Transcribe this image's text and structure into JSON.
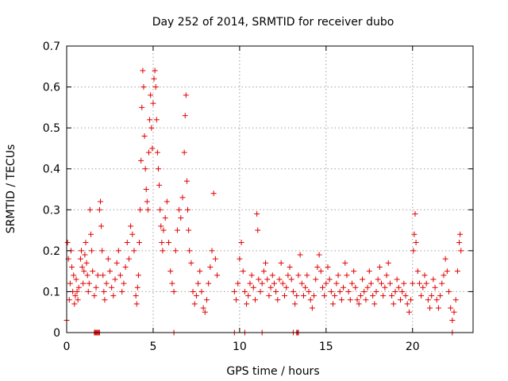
{
  "chart_data": {
    "type": "scatter",
    "title": "Day 252 of 2014, SRMTID for receiver dubo",
    "xlabel": "GPS time / hours",
    "ylabel": "SRMTID / TECUs",
    "xlim": [
      0,
      23.5
    ],
    "ylim": [
      0,
      0.7
    ],
    "x_ticks": [
      0,
      5,
      10,
      15,
      20
    ],
    "x_tick_labels": [
      "0",
      "5",
      "10",
      "15",
      "20"
    ],
    "y_ticks": [
      0,
      0.1,
      0.2,
      0.3,
      0.4,
      0.5,
      0.6,
      0.7
    ],
    "y_tick_labels": [
      "0",
      "0.1",
      "0.2",
      "0.3",
      "0.4",
      "0.5",
      "0.6",
      "0.7"
    ],
    "grid": true,
    "marker": "+",
    "marker_color": "#e00000",
    "series": [
      {
        "name": "SRMTID",
        "points": [
          [
            0.0,
            0.03
          ],
          [
            0.05,
            0.22
          ],
          [
            0.1,
            0.18
          ],
          [
            0.15,
            0.08
          ],
          [
            0.2,
            0.12
          ],
          [
            0.25,
            0.2
          ],
          [
            0.3,
            0.16
          ],
          [
            0.35,
            0.1
          ],
          [
            0.4,
            0.14
          ],
          [
            0.45,
            0.07
          ],
          [
            0.5,
            0.09
          ],
          [
            0.55,
            0.13
          ],
          [
            0.6,
            0.1
          ],
          [
            0.65,
            0.08
          ],
          [
            0.7,
            0.11
          ],
          [
            0.8,
            0.18
          ],
          [
            0.85,
            0.2
          ],
          [
            0.9,
            0.16
          ],
          [
            0.95,
            0.12
          ],
          [
            1.0,
            0.15
          ],
          [
            1.05,
            0.19
          ],
          [
            1.1,
            0.22
          ],
          [
            1.15,
            0.17
          ],
          [
            1.2,
            0.14
          ],
          [
            1.25,
            0.1
          ],
          [
            1.3,
            0.12
          ],
          [
            1.35,
            0.3
          ],
          [
            1.4,
            0.24
          ],
          [
            1.45,
            0.2
          ],
          [
            1.5,
            0.15
          ],
          [
            1.6,
            0.09
          ],
          [
            1.7,
            0.11
          ],
          [
            1.8,
            0.14
          ],
          [
            1.9,
            0.3
          ],
          [
            1.95,
            0.32
          ],
          [
            2.0,
            0.26
          ],
          [
            2.05,
            0.2
          ],
          [
            2.1,
            0.14
          ],
          [
            2.15,
            0.1
          ],
          [
            2.2,
            0.08
          ],
          [
            2.3,
            0.12
          ],
          [
            2.4,
            0.18
          ],
          [
            2.5,
            0.15
          ],
          [
            2.6,
            0.11
          ],
          [
            2.7,
            0.09
          ],
          [
            2.8,
            0.13
          ],
          [
            2.9,
            0.17
          ],
          [
            3.0,
            0.2
          ],
          [
            3.1,
            0.14
          ],
          [
            3.2,
            0.1
          ],
          [
            3.3,
            0.12
          ],
          [
            3.4,
            0.16
          ],
          [
            3.5,
            0.22
          ],
          [
            3.6,
            0.18
          ],
          [
            3.7,
            0.26
          ],
          [
            3.8,
            0.24
          ],
          [
            3.9,
            0.2
          ],
          [
            4.0,
            0.09
          ],
          [
            4.05,
            0.07
          ],
          [
            4.1,
            0.11
          ],
          [
            4.15,
            0.14
          ],
          [
            4.2,
            0.22
          ],
          [
            4.25,
            0.3
          ],
          [
            4.3,
            0.42
          ],
          [
            4.35,
            0.55
          ],
          [
            4.4,
            0.64
          ],
          [
            4.45,
            0.6
          ],
          [
            4.5,
            0.48
          ],
          [
            4.55,
            0.4
          ],
          [
            4.6,
            0.35
          ],
          [
            4.65,
            0.32
          ],
          [
            4.7,
            0.3
          ],
          [
            4.75,
            0.44
          ],
          [
            4.8,
            0.52
          ],
          [
            4.85,
            0.58
          ],
          [
            4.9,
            0.5
          ],
          [
            4.95,
            0.45
          ],
          [
            5.0,
            0.56
          ],
          [
            5.05,
            0.62
          ],
          [
            5.1,
            0.64
          ],
          [
            5.15,
            0.6
          ],
          [
            5.2,
            0.52
          ],
          [
            5.25,
            0.44
          ],
          [
            5.3,
            0.4
          ],
          [
            5.35,
            0.36
          ],
          [
            5.4,
            0.3
          ],
          [
            5.45,
            0.26
          ],
          [
            5.5,
            0.22
          ],
          [
            5.55,
            0.2
          ],
          [
            5.6,
            0.25
          ],
          [
            5.7,
            0.28
          ],
          [
            5.8,
            0.32
          ],
          [
            5.9,
            0.22
          ],
          [
            6.0,
            0.15
          ],
          [
            6.1,
            0.12
          ],
          [
            6.2,
            0.1
          ],
          [
            6.3,
            0.2
          ],
          [
            6.4,
            0.25
          ],
          [
            6.5,
            0.3
          ],
          [
            6.6,
            0.28
          ],
          [
            6.7,
            0.33
          ],
          [
            6.8,
            0.44
          ],
          [
            6.85,
            0.53
          ],
          [
            6.9,
            0.58
          ],
          [
            6.95,
            0.37
          ],
          [
            7.0,
            0.3
          ],
          [
            7.05,
            0.25
          ],
          [
            7.1,
            0.2
          ],
          [
            7.2,
            0.17
          ],
          [
            7.3,
            0.1
          ],
          [
            7.4,
            0.07
          ],
          [
            7.5,
            0.09
          ],
          [
            7.6,
            0.12
          ],
          [
            7.7,
            0.15
          ],
          [
            7.8,
            0.1
          ],
          [
            7.9,
            0.06
          ],
          [
            8.0,
            0.05
          ],
          [
            8.1,
            0.08
          ],
          [
            8.2,
            0.12
          ],
          [
            8.3,
            0.16
          ],
          [
            8.4,
            0.2
          ],
          [
            8.5,
            0.34
          ],
          [
            8.6,
            0.18
          ],
          [
            8.7,
            0.14
          ],
          [
            9.7,
            0.1
          ],
          [
            9.8,
            0.08
          ],
          [
            9.9,
            0.12
          ],
          [
            10.0,
            0.18
          ],
          [
            10.1,
            0.22
          ],
          [
            10.2,
            0.15
          ],
          [
            10.3,
            0.1
          ],
          [
            10.4,
            0.07
          ],
          [
            10.5,
            0.09
          ],
          [
            10.6,
            0.12
          ],
          [
            10.7,
            0.14
          ],
          [
            10.8,
            0.11
          ],
          [
            10.9,
            0.08
          ],
          [
            11.0,
            0.29
          ],
          [
            11.05,
            0.25
          ],
          [
            11.1,
            0.13
          ],
          [
            11.2,
            0.1
          ],
          [
            11.3,
            0.12
          ],
          [
            11.4,
            0.15
          ],
          [
            11.5,
            0.17
          ],
          [
            11.6,
            0.13
          ],
          [
            11.7,
            0.09
          ],
          [
            11.8,
            0.11
          ],
          [
            11.9,
            0.14
          ],
          [
            12.0,
            0.12
          ],
          [
            12.1,
            0.1
          ],
          [
            12.2,
            0.08
          ],
          [
            12.3,
            0.13
          ],
          [
            12.4,
            0.17
          ],
          [
            12.5,
            0.12
          ],
          [
            12.6,
            0.09
          ],
          [
            12.7,
            0.11
          ],
          [
            12.8,
            0.14
          ],
          [
            12.9,
            0.16
          ],
          [
            13.0,
            0.13
          ],
          [
            13.1,
            0.1
          ],
          [
            13.2,
            0.07
          ],
          [
            13.3,
            0.09
          ],
          [
            13.4,
            0.14
          ],
          [
            13.5,
            0.19
          ],
          [
            13.6,
            0.12
          ],
          [
            13.7,
            0.09
          ],
          [
            13.8,
            0.11
          ],
          [
            13.9,
            0.14
          ],
          [
            14.0,
            0.1
          ],
          [
            14.1,
            0.08
          ],
          [
            14.2,
            0.06
          ],
          [
            14.3,
            0.09
          ],
          [
            14.4,
            0.13
          ],
          [
            14.5,
            0.16
          ],
          [
            14.6,
            0.19
          ],
          [
            14.7,
            0.15
          ],
          [
            14.8,
            0.11
          ],
          [
            14.9,
            0.09
          ],
          [
            15.0,
            0.12
          ],
          [
            15.1,
            0.16
          ],
          [
            15.2,
            0.13
          ],
          [
            15.3,
            0.1
          ],
          [
            15.4,
            0.07
          ],
          [
            15.5,
            0.09
          ],
          [
            15.6,
            0.12
          ],
          [
            15.7,
            0.14
          ],
          [
            15.8,
            0.1
          ],
          [
            15.9,
            0.08
          ],
          [
            16.0,
            0.11
          ],
          [
            16.1,
            0.17
          ],
          [
            16.2,
            0.14
          ],
          [
            16.3,
            0.1
          ],
          [
            16.4,
            0.08
          ],
          [
            16.5,
            0.12
          ],
          [
            16.6,
            0.15
          ],
          [
            16.7,
            0.11
          ],
          [
            16.8,
            0.08
          ],
          [
            16.9,
            0.07
          ],
          [
            17.0,
            0.09
          ],
          [
            17.1,
            0.13
          ],
          [
            17.2,
            0.1
          ],
          [
            17.3,
            0.08
          ],
          [
            17.4,
            0.11
          ],
          [
            17.5,
            0.15
          ],
          [
            17.6,
            0.12
          ],
          [
            17.7,
            0.09
          ],
          [
            17.8,
            0.07
          ],
          [
            17.9,
            0.1
          ],
          [
            18.0,
            0.13
          ],
          [
            18.1,
            0.16
          ],
          [
            18.2,
            0.12
          ],
          [
            18.3,
            0.09
          ],
          [
            18.4,
            0.11
          ],
          [
            18.5,
            0.14
          ],
          [
            18.6,
            0.17
          ],
          [
            18.7,
            0.12
          ],
          [
            18.8,
            0.09
          ],
          [
            18.9,
            0.07
          ],
          [
            19.0,
            0.1
          ],
          [
            19.1,
            0.13
          ],
          [
            19.2,
            0.11
          ],
          [
            19.3,
            0.08
          ],
          [
            19.4,
            0.1
          ],
          [
            19.5,
            0.12
          ],
          [
            19.6,
            0.09
          ],
          [
            19.7,
            0.07
          ],
          [
            19.8,
            0.05
          ],
          [
            19.9,
            0.08
          ],
          [
            20.0,
            0.12
          ],
          [
            20.05,
            0.2
          ],
          [
            20.1,
            0.24
          ],
          [
            20.15,
            0.29
          ],
          [
            20.2,
            0.22
          ],
          [
            20.3,
            0.15
          ],
          [
            20.4,
            0.12
          ],
          [
            20.5,
            0.09
          ],
          [
            20.6,
            0.11
          ],
          [
            20.7,
            0.14
          ],
          [
            20.8,
            0.12
          ],
          [
            20.9,
            0.08
          ],
          [
            21.0,
            0.06
          ],
          [
            21.1,
            0.09
          ],
          [
            21.2,
            0.13
          ],
          [
            21.3,
            0.11
          ],
          [
            21.4,
            0.08
          ],
          [
            21.5,
            0.06
          ],
          [
            21.6,
            0.09
          ],
          [
            21.7,
            0.12
          ],
          [
            21.8,
            0.14
          ],
          [
            21.9,
            0.18
          ],
          [
            22.0,
            0.15
          ],
          [
            22.1,
            0.1
          ],
          [
            22.2,
            0.06
          ],
          [
            22.3,
            0.03
          ],
          [
            22.4,
            0.05
          ],
          [
            22.5,
            0.08
          ],
          [
            22.6,
            0.15
          ],
          [
            22.7,
            0.22
          ],
          [
            22.75,
            0.24
          ],
          [
            22.8,
            0.2
          ]
        ]
      }
    ],
    "zero_markers_x": [
      1.6,
      1.65,
      1.7,
      1.75,
      1.8,
      1.85,
      1.9,
      6.2,
      9.7,
      10.3,
      11.3,
      13.1,
      13.3,
      13.35,
      13.4,
      22.3
    ]
  }
}
